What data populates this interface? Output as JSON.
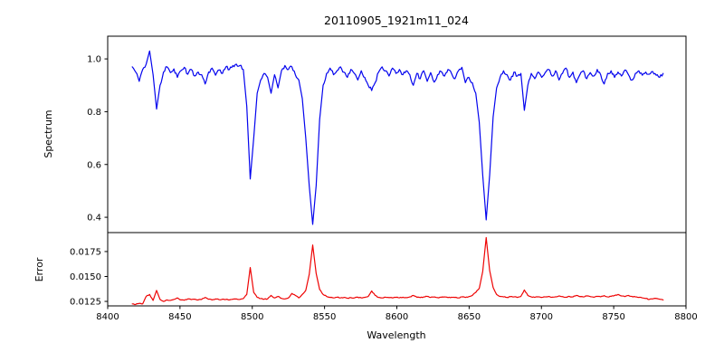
{
  "figure": {
    "title": "20110905_1921m11_024",
    "xlabel": "Wavelength",
    "ylabel_top": "Spectrum",
    "ylabel_bottom": "Error",
    "background": "#ffffff",
    "axis_color": "#000000",
    "spectrum_color": "#0404ee",
    "error_color": "#ee0404"
  },
  "chart_data": [
    {
      "type": "line",
      "series_name": "spectrum",
      "title": "20110905_1921m11_024",
      "ylabel": "Spectrum",
      "color": "#0404ee",
      "xlim": [
        8400,
        8800
      ],
      "ylim": [
        0.342,
        1.086
      ],
      "yticks": [
        0.4,
        0.6,
        0.8,
        1.0
      ],
      "ytick_labels": [
        "0.4",
        "0.6",
        "0.8",
        "1.0"
      ],
      "grid": false,
      "legend": "none",
      "x_start": 8417,
      "x_step": 2.4,
      "absorption_line_centers": [
        8433.8,
        8498.6,
        8541.8,
        8661.8,
        8688.2
      ],
      "values": [
        0.97,
        0.95,
        0.915,
        0.96,
        0.98,
        1.03,
        0.94,
        0.81,
        0.9,
        0.95,
        0.97,
        0.948,
        0.962,
        0.93,
        0.955,
        0.968,
        0.942,
        0.96,
        0.935,
        0.95,
        0.94,
        0.905,
        0.95,
        0.965,
        0.938,
        0.958,
        0.945,
        0.97,
        0.96,
        0.975,
        0.98,
        0.975,
        0.96,
        0.82,
        0.545,
        0.7,
        0.87,
        0.92,
        0.945,
        0.93,
        0.87,
        0.94,
        0.89,
        0.955,
        0.975,
        0.96,
        0.97,
        0.94,
        0.92,
        0.85,
        0.7,
        0.52,
        0.373,
        0.52,
        0.77,
        0.9,
        0.945,
        0.965,
        0.94,
        0.955,
        0.97,
        0.95,
        0.93,
        0.96,
        0.945,
        0.92,
        0.955,
        0.93,
        0.9,
        0.88,
        0.91,
        0.95,
        0.97,
        0.955,
        0.935,
        0.965,
        0.945,
        0.96,
        0.94,
        0.955,
        0.94,
        0.9,
        0.945,
        0.925,
        0.955,
        0.915,
        0.948,
        0.912,
        0.94,
        0.952,
        0.935,
        0.96,
        0.945,
        0.925,
        0.955,
        0.968,
        0.91,
        0.93,
        0.91,
        0.87,
        0.76,
        0.56,
        0.39,
        0.56,
        0.78,
        0.89,
        0.93,
        0.955,
        0.94,
        0.92,
        0.95,
        0.935,
        0.945,
        0.805,
        0.9,
        0.945,
        0.925,
        0.95,
        0.93,
        0.948,
        0.96,
        0.935,
        0.955,
        0.92,
        0.945,
        0.965,
        0.93,
        0.95,
        0.91,
        0.94,
        0.955,
        0.925,
        0.948,
        0.935,
        0.96,
        0.94,
        0.905,
        0.945,
        0.955,
        0.93,
        0.95,
        0.935,
        0.958,
        0.94,
        0.92,
        0.945,
        0.955,
        0.938,
        0.95,
        0.942,
        0.952,
        0.938,
        0.93,
        0.945
      ]
    },
    {
      "type": "line",
      "series_name": "error",
      "ylabel": "Error",
      "xlabel": "Wavelength",
      "color": "#ee0404",
      "xlim": [
        8400,
        8800
      ],
      "ylim": [
        0.01205,
        0.0194
      ],
      "yticks": [
        0.0125,
        0.015,
        0.0175
      ],
      "ytick_labels": [
        "0.0125",
        "0.0150",
        "0.0175"
      ],
      "xticks": [
        8400,
        8450,
        8500,
        8550,
        8600,
        8650,
        8700,
        8750,
        8800
      ],
      "xtick_labels": [
        "8400",
        "8450",
        "8500",
        "8550",
        "8600",
        "8650",
        "8700",
        "8750",
        "8800"
      ],
      "grid": false,
      "legend": "none",
      "x_start": 8417,
      "x_step": 2.4,
      "error_peak_centers": [
        8433.8,
        8498.6,
        8541.8,
        8661.8,
        8688.2
      ],
      "values": [
        0.01225,
        0.0122,
        0.0123,
        0.01225,
        0.013,
        0.0132,
        0.0126,
        0.0136,
        0.0127,
        0.0125,
        0.01265,
        0.0126,
        0.0127,
        0.01285,
        0.01265,
        0.01262,
        0.01275,
        0.01268,
        0.01272,
        0.01265,
        0.0127,
        0.0129,
        0.01272,
        0.01265,
        0.01275,
        0.01268,
        0.01272,
        0.0127,
        0.01265,
        0.01272,
        0.01275,
        0.0127,
        0.01278,
        0.0132,
        0.0159,
        0.0134,
        0.0129,
        0.01278,
        0.01272,
        0.01275,
        0.0131,
        0.01285,
        0.013,
        0.0128,
        0.01275,
        0.01285,
        0.0133,
        0.0131,
        0.01285,
        0.0132,
        0.0136,
        0.0152,
        0.01815,
        0.0153,
        0.0137,
        0.0132,
        0.013,
        0.0129,
        0.01285,
        0.01292,
        0.01285,
        0.0129,
        0.01282,
        0.01288,
        0.01285,
        0.01292,
        0.01285,
        0.0129,
        0.013,
        0.01355,
        0.0131,
        0.0129,
        0.01285,
        0.01292,
        0.01288,
        0.01285,
        0.0129,
        0.01286,
        0.01292,
        0.01288,
        0.01295,
        0.0131,
        0.01292,
        0.01288,
        0.01295,
        0.013,
        0.0129,
        0.01295,
        0.01288,
        0.01292,
        0.01295,
        0.01288,
        0.01292,
        0.0129,
        0.01285,
        0.01295,
        0.0129,
        0.01298,
        0.0131,
        0.0134,
        0.0138,
        0.0155,
        0.0189,
        0.0156,
        0.0139,
        0.0132,
        0.013,
        0.01295,
        0.0129,
        0.01298,
        0.01295,
        0.0129,
        0.013,
        0.01365,
        0.0131,
        0.01295,
        0.0129,
        0.01296,
        0.0129,
        0.01295,
        0.013,
        0.01292,
        0.01296,
        0.01305,
        0.01298,
        0.01292,
        0.013,
        0.01295,
        0.0131,
        0.01298,
        0.01295,
        0.01305,
        0.01298,
        0.01292,
        0.013,
        0.01296,
        0.01308,
        0.01295,
        0.013,
        0.0131,
        0.0132,
        0.01305,
        0.01298,
        0.0131,
        0.013,
        0.01295,
        0.0129,
        0.01285,
        0.0128,
        0.0127,
        0.01275,
        0.0128,
        0.01272,
        0.01265
      ]
    }
  ]
}
